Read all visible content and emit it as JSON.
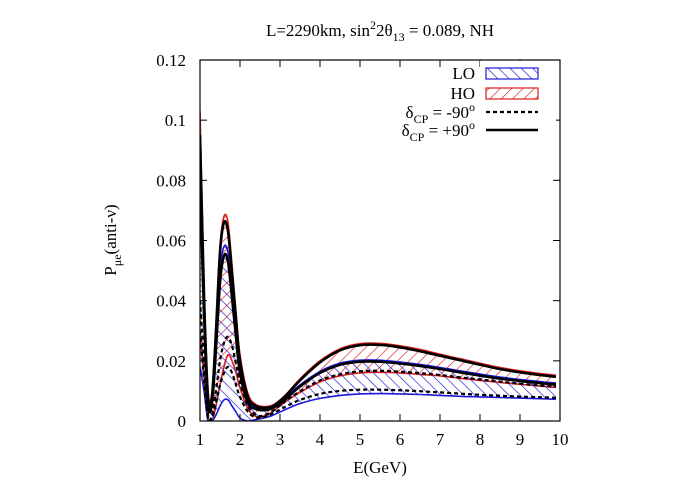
{
  "chart_data": {
    "type": "area",
    "title": {
      "prefix": "L=2290km, sin",
      "sup1": "2",
      "mid": "2θ",
      "sub1": "13",
      "suffix": " = 0.089, NH"
    },
    "xlabel": "E(GeV)",
    "ylabel": {
      "main": "P",
      "sub": "μe",
      "tail": "(anti-ν)"
    },
    "xlim": [
      1,
      10
    ],
    "ylim": [
      0,
      0.12
    ],
    "xticks": [
      "1",
      "2",
      "3",
      "4",
      "5",
      "6",
      "7",
      "8",
      "9",
      "10"
    ],
    "yticks": [
      "0",
      "0.02",
      "0.04",
      "0.06",
      "0.08",
      "0.1",
      "0.12"
    ],
    "grid": false,
    "legend_position": "top-right",
    "legend": [
      {
        "label": "LO",
        "style": "hatched-band",
        "color": "#1a1ad6"
      },
      {
        "label": "HO",
        "style": "hatched-band",
        "color": "#e01b1b"
      },
      {
        "label_main": "δ",
        "label_sub": "CP",
        "label_tail": " = -90",
        "label_sup": "o",
        "style": "dashed",
        "color": "#000000"
      },
      {
        "label_main": "δ",
        "label_sub": "CP",
        "label_tail": " = +90",
        "label_sup": "o",
        "style": "solid",
        "color": "#000000"
      }
    ],
    "x": [
      1.0,
      1.1,
      1.2,
      1.3,
      1.4,
      1.5,
      1.6,
      1.7,
      1.8,
      1.9,
      2.0,
      2.2,
      2.4,
      2.6,
      2.8,
      3.0,
      3.2,
      3.5,
      4.0,
      4.5,
      5.0,
      5.5,
      6.0,
      6.5,
      7.0,
      7.5,
      8.0,
      8.5,
      9.0,
      9.5,
      9.9
    ],
    "series": [
      {
        "name": "HO upper",
        "color": "#e01b1b",
        "values": [
          0.103,
          0.045,
          0.01,
          0.01,
          0.032,
          0.058,
          0.068,
          0.066,
          0.052,
          0.036,
          0.022,
          0.009,
          0.0055,
          0.0048,
          0.0052,
          0.007,
          0.0095,
          0.014,
          0.02,
          0.024,
          0.0257,
          0.0258,
          0.025,
          0.0238,
          0.0222,
          0.0207,
          0.0192,
          0.0178,
          0.0167,
          0.0158,
          0.0152
        ]
      },
      {
        "name": "HO lower",
        "color": "#e01b1b",
        "values": [
          0.028,
          0.015,
          0.0,
          0.0,
          0.005,
          0.012,
          0.018,
          0.022,
          0.02,
          0.016,
          0.011,
          0.004,
          0.0015,
          0.0015,
          0.003,
          0.005,
          0.007,
          0.0095,
          0.013,
          0.015,
          0.016,
          0.0162,
          0.016,
          0.0155,
          0.015,
          0.0142,
          0.0135,
          0.0128,
          0.0122,
          0.0116,
          0.0112
        ]
      },
      {
        "name": "LO upper",
        "color": "#1a1ad6",
        "values": [
          0.087,
          0.04,
          0.008,
          0.008,
          0.028,
          0.05,
          0.058,
          0.056,
          0.044,
          0.03,
          0.018,
          0.007,
          0.0045,
          0.004,
          0.0045,
          0.0062,
          0.0085,
          0.012,
          0.0165,
          0.0192,
          0.0202,
          0.0202,
          0.0196,
          0.0188,
          0.0178,
          0.0167,
          0.0156,
          0.0146,
          0.0138,
          0.0131,
          0.0126
        ]
      },
      {
        "name": "LO lower",
        "color": "#1a1ad6",
        "values": [
          0.018,
          0.01,
          0.0,
          0.0,
          0.002,
          0.005,
          0.007,
          0.007,
          0.005,
          0.003,
          0.001,
          0.0,
          0.0005,
          0.001,
          0.0018,
          0.003,
          0.0042,
          0.0058,
          0.0075,
          0.0085,
          0.009,
          0.0091,
          0.009,
          0.0088,
          0.0085,
          0.0082,
          0.008,
          0.0078,
          0.0076,
          0.0074,
          0.0072
        ]
      },
      {
        "name": "δCP=+90° HO",
        "style": "solid",
        "values": [
          0.095,
          0.042,
          0.008,
          0.008,
          0.03,
          0.056,
          0.066,
          0.063,
          0.049,
          0.034,
          0.02,
          0.008,
          0.005,
          0.0044,
          0.0048,
          0.0066,
          0.0092,
          0.0135,
          0.0195,
          0.0235,
          0.0252,
          0.0253,
          0.0245,
          0.0232,
          0.0217,
          0.0202,
          0.0187,
          0.0173,
          0.0162,
          0.0153,
          0.0147
        ]
      },
      {
        "name": "δCP=+90° LO",
        "style": "solid",
        "values": [
          0.08,
          0.036,
          0.006,
          0.006,
          0.024,
          0.046,
          0.055,
          0.053,
          0.041,
          0.028,
          0.016,
          0.006,
          0.004,
          0.0036,
          0.0042,
          0.0058,
          0.008,
          0.0115,
          0.016,
          0.0187,
          0.0197,
          0.0197,
          0.0191,
          0.0183,
          0.0173,
          0.0162,
          0.0151,
          0.0141,
          0.0133,
          0.0126,
          0.0121
        ]
      },
      {
        "name": "δCP=-90° HO",
        "style": "dashed",
        "values": [
          0.04,
          0.02,
          0.002,
          0.002,
          0.01,
          0.02,
          0.026,
          0.028,
          0.025,
          0.019,
          0.013,
          0.005,
          0.002,
          0.0018,
          0.0032,
          0.0052,
          0.0072,
          0.0098,
          0.0135,
          0.0155,
          0.0165,
          0.0167,
          0.0164,
          0.0159,
          0.0153,
          0.0145,
          0.0138,
          0.0131,
          0.0124,
          0.0118,
          0.0114
        ]
      },
      {
        "name": "δCP=-90° LO",
        "style": "dashed",
        "values": [
          0.03,
          0.014,
          0.001,
          0.001,
          0.006,
          0.012,
          0.016,
          0.018,
          0.016,
          0.012,
          0.008,
          0.003,
          0.0012,
          0.0014,
          0.0024,
          0.0038,
          0.0052,
          0.007,
          0.009,
          0.01,
          0.0104,
          0.0104,
          0.0102,
          0.0099,
          0.0095,
          0.0091,
          0.0087,
          0.0084,
          0.0081,
          0.0079,
          0.0077
        ]
      }
    ]
  }
}
